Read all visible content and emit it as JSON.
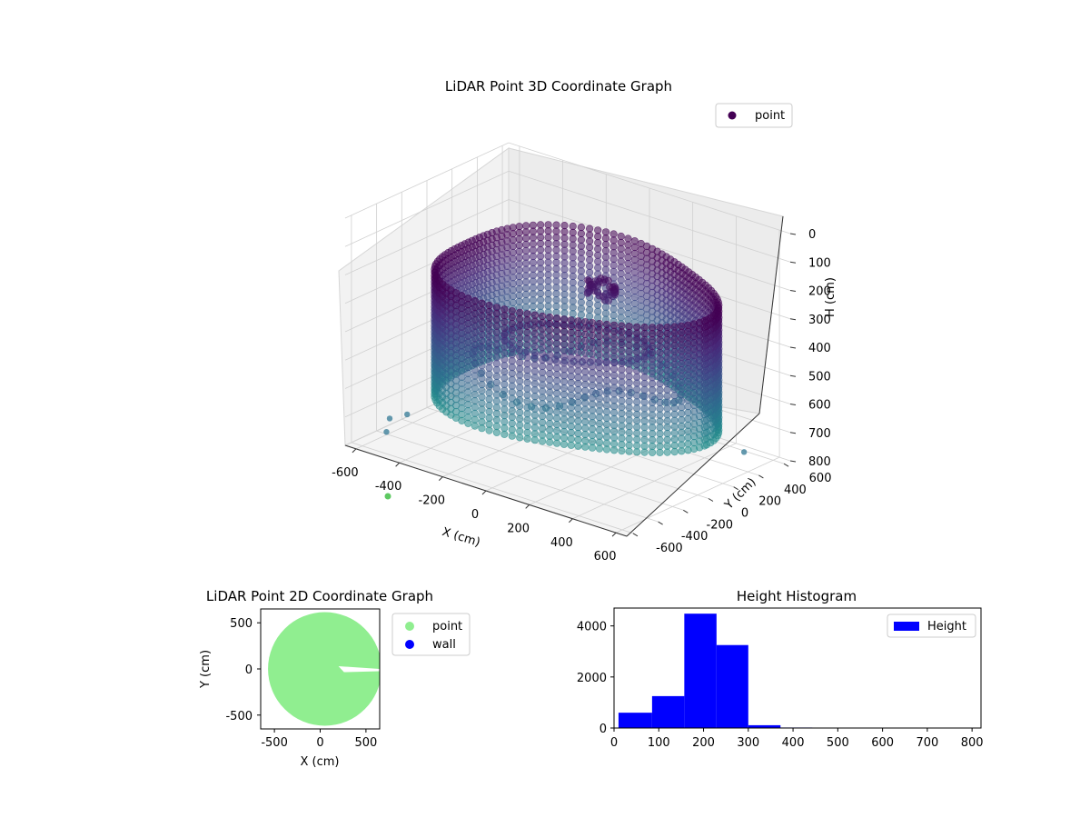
{
  "figure": {
    "background": "#ffffff"
  },
  "chart_data": [
    {
      "type": "scatter",
      "projection": "3d",
      "title": "LiDAR Point 3D Coordinate Graph",
      "xlabel": "X (cm)",
      "ylabel": "Y (cm)",
      "zlabel": "H (cm)",
      "xlim": [
        -650,
        650
      ],
      "ylim": [
        -650,
        650
      ],
      "zlim": [
        0,
        800
      ],
      "z_inverted": true,
      "x_ticks": [
        "-600",
        "-400",
        "-200",
        "0",
        "200",
        "400",
        "600"
      ],
      "y_ticks": [
        "-600",
        "-400",
        "-200",
        "0",
        "200",
        "400",
        "600"
      ],
      "z_ticks": [
        "0",
        "100",
        "200",
        "300",
        "400",
        "500",
        "600",
        "700",
        "800"
      ],
      "grid": true,
      "legend": {
        "placement": "top-right",
        "entries": [
          {
            "label": "point",
            "color": "#440154"
          }
        ]
      },
      "colormap": "viridis",
      "series": [
        {
          "name": "point",
          "shape": "ring-room",
          "radius_cm": 600,
          "height_range_cm": [
            0,
            800
          ],
          "floor_height_cm": 300
        }
      ]
    },
    {
      "type": "scatter",
      "title": "LiDAR Point 2D Coordinate Graph",
      "xlabel": "X (cm)",
      "ylabel": "Y (cm)",
      "xlim": [
        -650,
        650
      ],
      "ylim": [
        -650,
        650
      ],
      "x_ticks": [
        "-500",
        "0",
        "500"
      ],
      "y_ticks": [
        "-500",
        "0",
        "500"
      ],
      "legend": {
        "placement": "outside-right",
        "entries": [
          {
            "label": "point",
            "color": "#90ee90"
          },
          {
            "label": "wall",
            "color": "#0000ff"
          }
        ]
      },
      "series": [
        {
          "name": "point",
          "color": "#90ee90",
          "shape": "filled-disk",
          "center": [
            50,
            0
          ],
          "radius": 620
        }
      ]
    },
    {
      "type": "bar",
      "title": "Height Histogram",
      "xlabel": "",
      "ylabel": "",
      "xlim": [
        0,
        820
      ],
      "ylim": [
        0,
        4700
      ],
      "x_ticks": [
        "0",
        "100",
        "200",
        "300",
        "400",
        "500",
        "600",
        "700",
        "800"
      ],
      "y_ticks": [
        "0",
        "2000",
        "4000"
      ],
      "legend": {
        "placement": "top-right",
        "entries": [
          {
            "label": "Height",
            "color": "#0000ff"
          }
        ]
      },
      "bins": [
        {
          "start": 10,
          "end": 85,
          "value": 600
        },
        {
          "start": 85,
          "end": 157,
          "value": 1250
        },
        {
          "start": 157,
          "end": 229,
          "value": 4480
        },
        {
          "start": 229,
          "end": 300,
          "value": 3250
        },
        {
          "start": 300,
          "end": 372,
          "value": 110
        },
        {
          "start": 372,
          "end": 443,
          "value": 20
        },
        {
          "start": 443,
          "end": 515,
          "value": 8
        },
        {
          "start": 515,
          "end": 586,
          "value": 5
        },
        {
          "start": 586,
          "end": 658,
          "value": 4
        },
        {
          "start": 658,
          "end": 729,
          "value": 3
        },
        {
          "start": 729,
          "end": 800,
          "value": 3
        }
      ],
      "color": "#0000ff"
    }
  ]
}
